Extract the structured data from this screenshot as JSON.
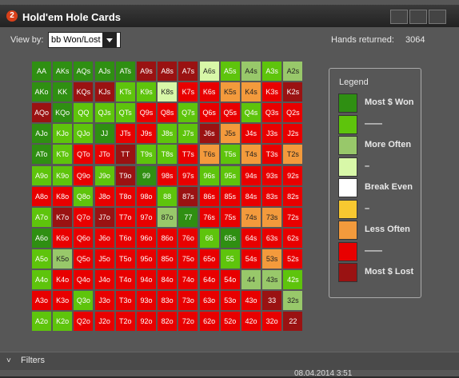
{
  "window": {
    "title": "Hold'em Hole Cards",
    "view_by_label": "View by:",
    "view_by_value": "bb Won/Lost",
    "hands_returned_label": "Hands returned:",
    "hands_returned": "3064",
    "filters": "Filters",
    "timestamp": "08.04.2014 3:51"
  },
  "legend": {
    "title": "Legend",
    "items": [
      {
        "label": "Most $ Won",
        "color": "#2f8f12"
      },
      {
        "label": "——",
        "color": "#5ec40c"
      },
      {
        "label": "More Often",
        "color": "#98c86a"
      },
      {
        "label": "–",
        "color": "#d8f8a8"
      },
      {
        "label": "Break Even",
        "color": "#ffffff"
      },
      {
        "label": "–",
        "color": "#f8c830"
      },
      {
        "label": "Less Often",
        "color": "#f39a3c"
      },
      {
        "label": "——",
        "color": "#e80000"
      },
      {
        "label": "Most $ Lost",
        "color": "#9a1212"
      }
    ]
  },
  "grid": {
    "labels": [
      [
        "AA",
        "AKs",
        "AQs",
        "AJs",
        "ATs",
        "A9s",
        "A8s",
        "A7s",
        "A6s",
        "A5s",
        "A4s",
        "A3s",
        "A2s"
      ],
      [
        "AKo",
        "KK",
        "KQs",
        "KJs",
        "KTs",
        "K9s",
        "K8s",
        "K7s",
        "K6s",
        "K5s",
        "K4s",
        "K3s",
        "K2s"
      ],
      [
        "AQo",
        "KQo",
        "QQ",
        "QJs",
        "QTs",
        "Q9s",
        "Q8s",
        "Q7s",
        "Q6s",
        "Q5s",
        "Q4s",
        "Q3s",
        "Q2s"
      ],
      [
        "AJo",
        "KJo",
        "QJo",
        "JJ",
        "JTs",
        "J9s",
        "J8s",
        "J7s",
        "J6s",
        "J5s",
        "J4s",
        "J3s",
        "J2s"
      ],
      [
        "ATo",
        "KTo",
        "QTo",
        "JTo",
        "TT",
        "T9s",
        "T8s",
        "T7s",
        "T6s",
        "T5s",
        "T4s",
        "T3s",
        "T2s"
      ],
      [
        "A9o",
        "K9o",
        "Q9o",
        "J9o",
        "T9o",
        "99",
        "98s",
        "97s",
        "96s",
        "95s",
        "94s",
        "93s",
        "92s"
      ],
      [
        "A8o",
        "K8o",
        "Q8o",
        "J8o",
        "T8o",
        "98o",
        "88",
        "87s",
        "86s",
        "85s",
        "84s",
        "83s",
        "82s"
      ],
      [
        "A7o",
        "K7o",
        "Q7o",
        "J7o",
        "T7o",
        "97o",
        "87o",
        "77",
        "76s",
        "75s",
        "74s",
        "73s",
        "72s"
      ],
      [
        "A6o",
        "K6o",
        "Q6o",
        "J6o",
        "T6o",
        "96o",
        "86o",
        "76o",
        "66",
        "65s",
        "64s",
        "63s",
        "62s"
      ],
      [
        "A5o",
        "K5o",
        "Q5o",
        "J5o",
        "T5o",
        "95o",
        "85o",
        "75o",
        "65o",
        "55",
        "54s",
        "53s",
        "52s"
      ],
      [
        "A4o",
        "K4o",
        "Q4o",
        "J4o",
        "T4o",
        "94o",
        "84o",
        "74o",
        "64o",
        "54o",
        "44",
        "43s",
        "42s"
      ],
      [
        "A3o",
        "K3o",
        "Q3o",
        "J3o",
        "T3o",
        "93o",
        "83o",
        "73o",
        "63o",
        "53o",
        "43o",
        "33",
        "32s"
      ],
      [
        "A2o",
        "K2o",
        "Q2o",
        "J2o",
        "T2o",
        "92o",
        "82o",
        "72o",
        "62o",
        "52o",
        "42o",
        "32o",
        "22"
      ]
    ],
    "colors": [
      [
        "#2f8f12",
        "#2f8f12",
        "#2f8f12",
        "#2f8f12",
        "#2f8f12",
        "#9a1212",
        "#9a1212",
        "#9a1212",
        "#d8f8a8",
        "#5ec40c",
        "#98c86a",
        "#5ec40c",
        "#98c86a"
      ],
      [
        "#2f8f12",
        "#2f8f12",
        "#9a1212",
        "#9a1212",
        "#5ec40c",
        "#5ec40c",
        "#d8f8a8",
        "#e80000",
        "#e80000",
        "#f39a3c",
        "#f39a3c",
        "#e80000",
        "#9a1212"
      ],
      [
        "#9a1212",
        "#2f8f12",
        "#5ec40c",
        "#5ec40c",
        "#5ec40c",
        "#e80000",
        "#e80000",
        "#5ec40c",
        "#e80000",
        "#e80000",
        "#5ec40c",
        "#e80000",
        "#e80000"
      ],
      [
        "#2f8f12",
        "#5ec40c",
        "#5ec40c",
        "#2f8f12",
        "#e80000",
        "#e80000",
        "#5ec40c",
        "#5ec40c",
        "#9a1212",
        "#f39a3c",
        "#e80000",
        "#e80000",
        "#e80000"
      ],
      [
        "#2f8f12",
        "#5ec40c",
        "#e80000",
        "#e80000",
        "#9a1212",
        "#5ec40c",
        "#5ec40c",
        "#e80000",
        "#f39a3c",
        "#5ec40c",
        "#f39a3c",
        "#e80000",
        "#f39a3c"
      ],
      [
        "#5ec40c",
        "#5ec40c",
        "#e80000",
        "#5ec40c",
        "#9a1212",
        "#2f8f12",
        "#e80000",
        "#e80000",
        "#5ec40c",
        "#5ec40c",
        "#e80000",
        "#e80000",
        "#e80000"
      ],
      [
        "#e80000",
        "#e80000",
        "#5ec40c",
        "#e80000",
        "#e80000",
        "#e80000",
        "#5ec40c",
        "#9a1212",
        "#e80000",
        "#e80000",
        "#e80000",
        "#e80000",
        "#e80000"
      ],
      [
        "#5ec40c",
        "#9a1212",
        "#e80000",
        "#9a1212",
        "#e80000",
        "#e80000",
        "#98c86a",
        "#2f8f12",
        "#e80000",
        "#e80000",
        "#f39a3c",
        "#f39a3c",
        "#e80000"
      ],
      [
        "#2f8f12",
        "#e80000",
        "#e80000",
        "#e80000",
        "#e80000",
        "#e80000",
        "#e80000",
        "#e80000",
        "#5ec40c",
        "#2f8f12",
        "#e80000",
        "#e80000",
        "#e80000"
      ],
      [
        "#5ec40c",
        "#98c86a",
        "#e80000",
        "#e80000",
        "#e80000",
        "#e80000",
        "#e80000",
        "#e80000",
        "#e80000",
        "#5ec40c",
        "#e80000",
        "#f39a3c",
        "#e80000"
      ],
      [
        "#5ec40c",
        "#e80000",
        "#e80000",
        "#e80000",
        "#e80000",
        "#e80000",
        "#e80000",
        "#e80000",
        "#e80000",
        "#e80000",
        "#98c86a",
        "#98c86a",
        "#5ec40c"
      ],
      [
        "#e80000",
        "#e80000",
        "#5ec40c",
        "#e80000",
        "#e80000",
        "#e80000",
        "#e80000",
        "#e80000",
        "#e80000",
        "#e80000",
        "#e80000",
        "#9a1212",
        "#98c86a"
      ],
      [
        "#5ec40c",
        "#5ec40c",
        "#e80000",
        "#e80000",
        "#e80000",
        "#e80000",
        "#e80000",
        "#e80000",
        "#e80000",
        "#e80000",
        "#e80000",
        "#e80000",
        "#9a1212"
      ]
    ]
  }
}
